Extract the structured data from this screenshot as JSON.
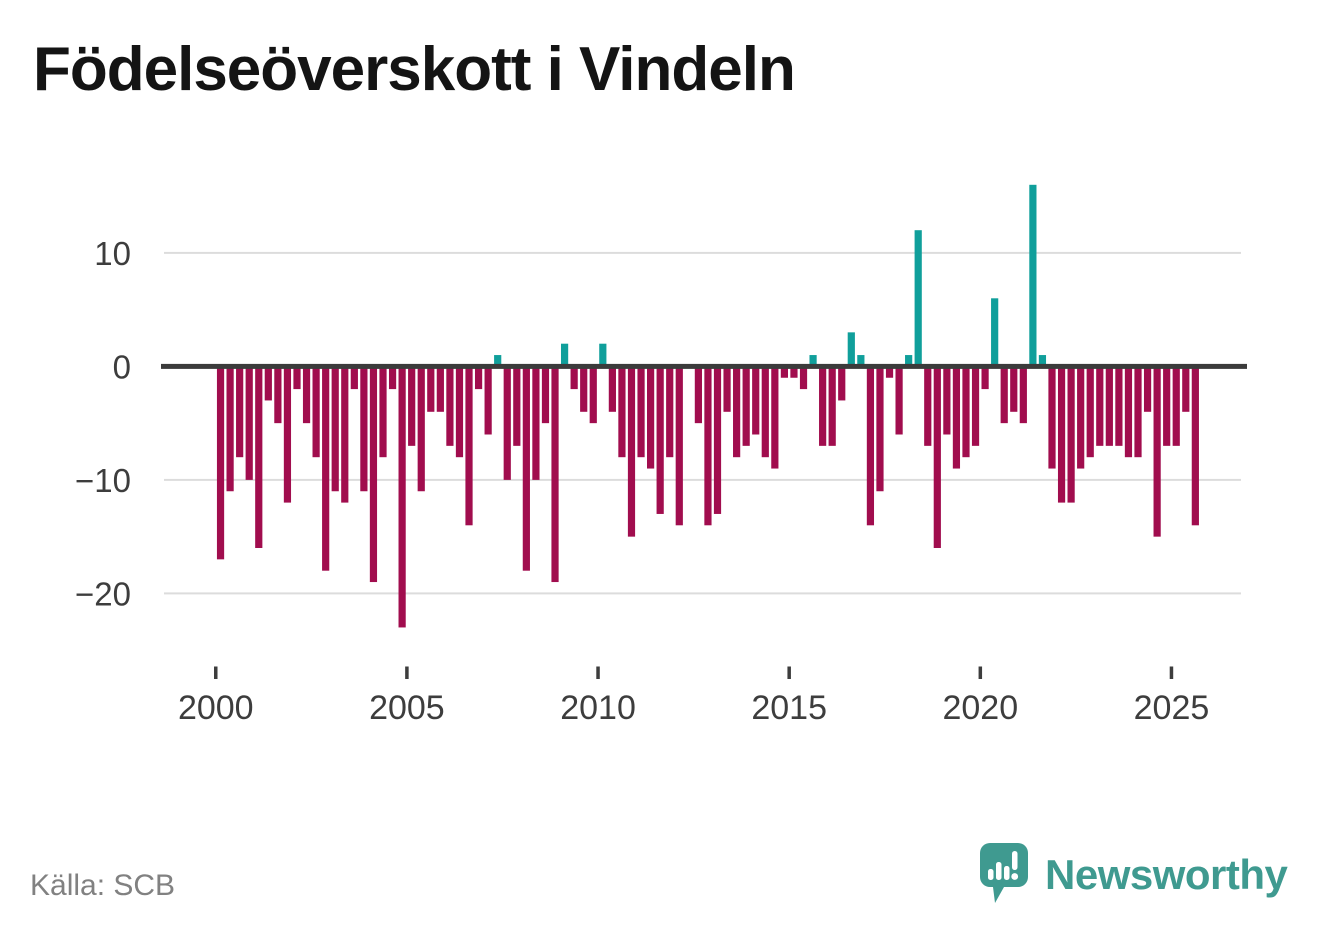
{
  "title": "Födelseöverskott i Vindeln",
  "source": "Källa: SCB",
  "logo": {
    "text": "Newsworthy",
    "icon": "newsworthy-speech-bubble-bar-chart-icon"
  },
  "colors": {
    "positive": "#109f9b",
    "negative": "#a10d4e",
    "axis": "#3b3b3b",
    "grid": "#dcdcdc",
    "tick_text": "#3d3d3d",
    "title_text": "#141414",
    "source_text": "#818181",
    "logo_teal": "#3f9a90",
    "background": "#ffffff"
  },
  "chart_data": {
    "type": "bar",
    "title": "Födelseöverskott i Vindeln",
    "xlabel": "",
    "ylabel": "",
    "frequency": "quarterly",
    "start_year": 2000,
    "start_quarter": 1,
    "end_year": 2025,
    "end_quarter": 3,
    "ylim": [
      -25,
      18
    ],
    "yticks": [
      10,
      0,
      -10,
      -20
    ],
    "xticks": [
      2000,
      2005,
      2010,
      2015,
      2020,
      2025
    ],
    "grid": "horizontal",
    "legend": "none",
    "values": [
      -17,
      -11,
      -8,
      -10,
      -16,
      -3,
      -5,
      -12,
      -2,
      -5,
      -8,
      -18,
      -11,
      -12,
      -2,
      -11,
      -19,
      -8,
      -2,
      -23,
      -7,
      -11,
      -4,
      -4,
      -7,
      -8,
      -14,
      -2,
      -6,
      1,
      -10,
      -7,
      -18,
      -10,
      -5,
      -19,
      2,
      -2,
      -4,
      -5,
      2,
      -4,
      -8,
      -15,
      -8,
      -9,
      -13,
      -8,
      -14,
      0,
      -5,
      -14,
      -13,
      -4,
      -8,
      -7,
      -6,
      -8,
      -9,
      -1,
      -1,
      -2,
      1,
      -7,
      -7,
      -3,
      3,
      1,
      -14,
      -11,
      -1,
      -6,
      1,
      12,
      -7,
      -16,
      -6,
      -9,
      -8,
      -7,
      -2,
      6,
      -5,
      -4,
      -5,
      16,
      1,
      -9,
      -12,
      -12,
      -9,
      -8,
      -7,
      -7,
      -7,
      -8,
      -8,
      -4,
      -15,
      -7,
      -7,
      -4,
      -14
    ]
  }
}
